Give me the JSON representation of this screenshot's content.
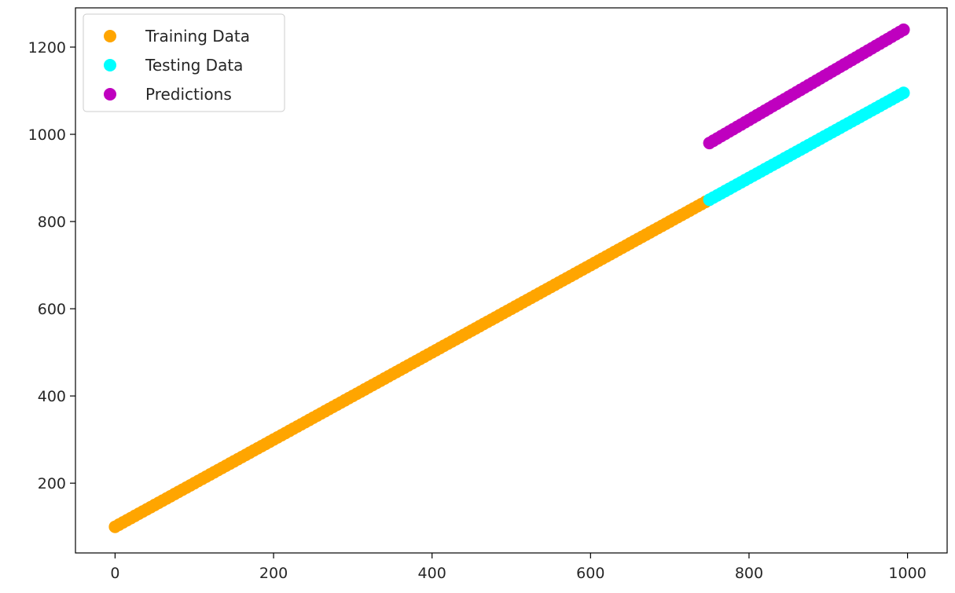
{
  "chart_data": {
    "type": "scatter",
    "title": "",
    "xlabel": "",
    "ylabel": "",
    "xlim": [
      -50,
      1050
    ],
    "ylim": [
      40,
      1290
    ],
    "xticks": [
      0,
      200,
      400,
      600,
      800,
      1000
    ],
    "yticks": [
      200,
      400,
      600,
      800,
      1000,
      1200
    ],
    "xtick_labels": [
      "0",
      "200",
      "400",
      "600",
      "800",
      "1000"
    ],
    "ytick_labels": [
      "200",
      "400",
      "600",
      "800",
      "1000",
      "1200"
    ],
    "grid": false,
    "legend_position": "top-left",
    "series": [
      {
        "name": "Training Data",
        "color": "#FFA500",
        "x_start": 0,
        "x_end": 745,
        "x_step": 5,
        "slope": 1,
        "intercept": 100
      },
      {
        "name": "Testing Data",
        "color": "#00FFFF",
        "x_start": 750,
        "x_end": 995,
        "x_step": 5,
        "slope": 1,
        "intercept": 100
      },
      {
        "name": "Predictions",
        "color": "#BF00BF",
        "x_start": 750,
        "x_end": 995,
        "x_step": 5,
        "slope": 1.06,
        "intercept": 185
      }
    ]
  }
}
